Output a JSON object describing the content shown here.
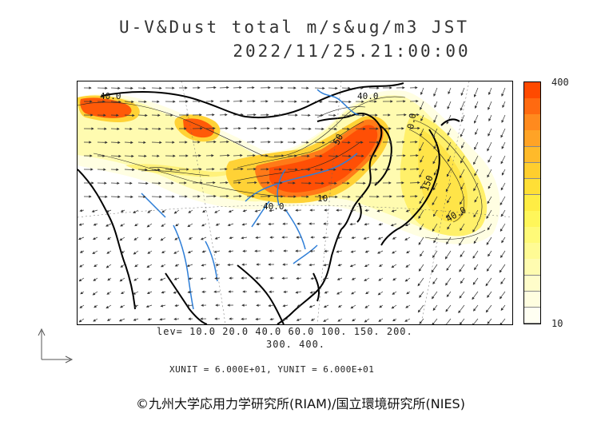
{
  "header": {
    "title": "U-V&Dust total m/s&ug/m3 JST",
    "datetime": "2022/11/25.21:00:00"
  },
  "map": {
    "contour_labels": [
      "40.0",
      "40.0",
      "50",
      "10",
      "40.0",
      "150",
      "40.0",
      "0.0"
    ],
    "colors": {
      "ocean": "#ffffff",
      "coast": "#000000",
      "river": "#2f7fd8",
      "vector": "#333333"
    }
  },
  "colorbar": {
    "max_label": "400",
    "min_label": "10",
    "colors": [
      "#ff4a00",
      "#ff6a10",
      "#ff8a1e",
      "#ffa326",
      "#ffba2a",
      "#ffce2e",
      "#ffdf36",
      "#ffed44",
      "#fff65a",
      "#fffa78",
      "#fffb94",
      "#fffcb0",
      "#fffdca",
      "#fffee0",
      "#fffff2"
    ]
  },
  "legend": {
    "levels_line1": "lev= 10.0 20.0 40.0 60.0 100. 150. 200.",
    "levels_line2": "300. 400.",
    "unit_line": "XUNIT = 6.000E+01, YUNIT = 6.000E+01"
  },
  "footer": {
    "credit": "©九州大学応用力学研究所(RIAM)/国立環境研究所(NIES)"
  }
}
